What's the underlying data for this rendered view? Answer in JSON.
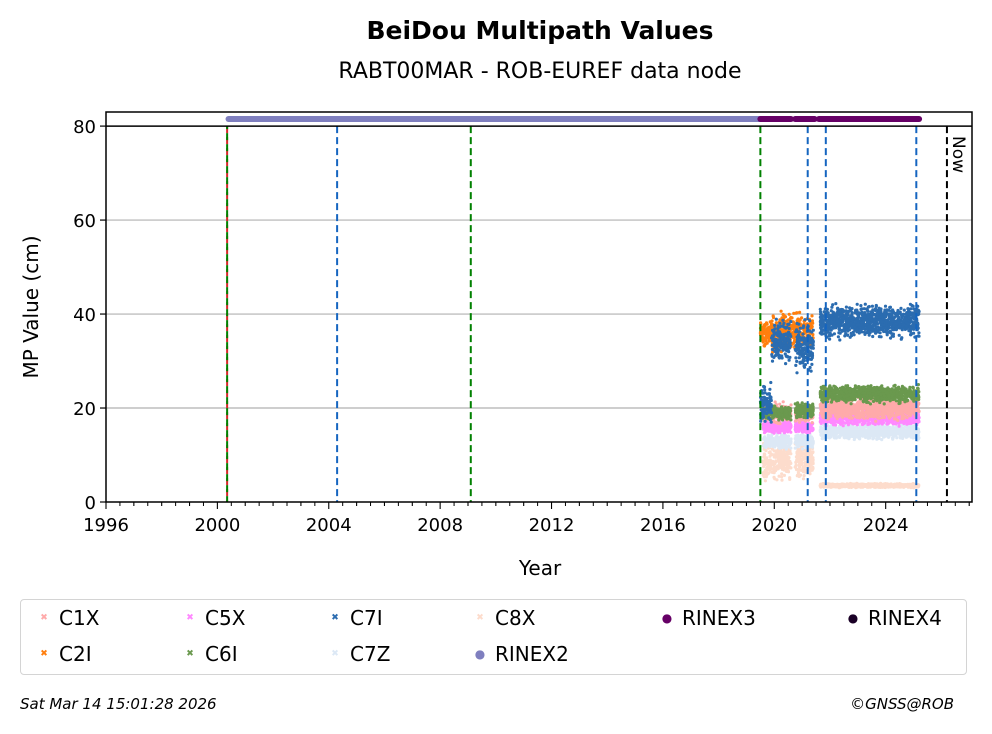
{
  "chart_data": {
    "type": "scatter",
    "title": "BeiDou Multipath Values",
    "subtitle": "RABT00MAR - ROB-EUREF data node",
    "xlabel": "Year",
    "ylabel": "MP Value (cm)",
    "xlim": [
      1996,
      2027.1
    ],
    "ylim": [
      0,
      83
    ],
    "xticks": [
      1996,
      2000,
      2004,
      2008,
      2012,
      2016,
      2020,
      2024
    ],
    "yticks": [
      0,
      20,
      40,
      60,
      80
    ],
    "grid": "y",
    "now_label": "Now",
    "vlines": [
      {
        "x": 2000.35,
        "color": "#d62728",
        "style": "dashed"
      },
      {
        "x": 2000.35,
        "color": "#008000",
        "style": "dashed"
      },
      {
        "x": 2004.3,
        "color": "#1565c0",
        "style": "dashed"
      },
      {
        "x": 2009.1,
        "color": "#008000",
        "style": "dashed"
      },
      {
        "x": 2019.5,
        "color": "#008000",
        "style": "dashed"
      },
      {
        "x": 2021.2,
        "color": "#1565c0",
        "style": "dashed"
      },
      {
        "x": 2021.85,
        "color": "#1565c0",
        "style": "dashed"
      },
      {
        "x": 2025.1,
        "color": "#1565c0",
        "style": "dashed"
      },
      {
        "x": 2026.2,
        "color": "#000000",
        "style": "dashed"
      }
    ],
    "rinex_bars": [
      {
        "name": "RINEX2",
        "start": 2000.4,
        "end": 2019.5,
        "y": 81.5,
        "color": "#7f7fbf"
      },
      {
        "name": "RINEX3",
        "start": 2019.5,
        "end": 2020.6,
        "y": 81.5,
        "color": "#660066"
      },
      {
        "name": "RINEX3",
        "start": 2020.75,
        "end": 2021.45,
        "y": 81.5,
        "color": "#660066"
      },
      {
        "name": "RINEX3",
        "start": 2021.6,
        "end": 2025.2,
        "y": 81.5,
        "color": "#660066"
      }
    ],
    "series": [
      {
        "name": "C1X",
        "color": "#ffaaaa",
        "segments": [
          {
            "x0": 2019.6,
            "x1": 2020.6,
            "mean": 19,
            "spread": 1.5
          },
          {
            "x0": 2020.75,
            "x1": 2021.4,
            "mean": 19,
            "spread": 1.5
          },
          {
            "x0": 2021.65,
            "x1": 2025.2,
            "mean": 20,
            "spread": 1.8
          }
        ]
      },
      {
        "name": "C2I",
        "color": "#ff7f0e",
        "segments": [
          {
            "x0": 2019.5,
            "x1": 2019.9,
            "mean": 36,
            "spread": 2
          },
          {
            "x0": 2019.9,
            "x1": 2021.4,
            "mean": 36,
            "spread": 3
          }
        ]
      },
      {
        "name": "C5X",
        "color": "#ff88ff",
        "segments": [
          {
            "x0": 2019.6,
            "x1": 2020.6,
            "mean": 16,
            "spread": 1
          },
          {
            "x0": 2020.75,
            "x1": 2021.4,
            "mean": 16,
            "spread": 1
          },
          {
            "x0": 2021.65,
            "x1": 2025.2,
            "mean": 18,
            "spread": 1.2
          }
        ]
      },
      {
        "name": "C6I",
        "color": "#6a994e",
        "segments": [
          {
            "x0": 2019.55,
            "x1": 2020.6,
            "mean": 19,
            "spread": 1.2
          },
          {
            "x0": 2020.75,
            "x1": 2021.4,
            "mean": 19.5,
            "spread": 1.2
          },
          {
            "x0": 2021.65,
            "x1": 2025.2,
            "mean": 23,
            "spread": 1.3
          }
        ]
      },
      {
        "name": "C7I",
        "color": "#2b6cb0",
        "segments": [
          {
            "x0": 2019.5,
            "x1": 2019.9,
            "mean": 21,
            "spread": 3
          },
          {
            "x0": 2019.9,
            "x1": 2020.6,
            "mean": 34,
            "spread": 3.5
          },
          {
            "x0": 2020.75,
            "x1": 2021.4,
            "mean": 33,
            "spread": 4
          },
          {
            "x0": 2021.65,
            "x1": 2025.2,
            "mean": 38.5,
            "spread": 2.5
          }
        ]
      },
      {
        "name": "C7Z",
        "color": "#dce8f5",
        "segments": [
          {
            "x0": 2019.6,
            "x1": 2020.6,
            "mean": 13,
            "spread": 1.2
          },
          {
            "x0": 2020.75,
            "x1": 2021.4,
            "mean": 13,
            "spread": 1.2
          },
          {
            "x0": 2021.65,
            "x1": 2025.2,
            "mean": 15,
            "spread": 1.2
          }
        ]
      },
      {
        "name": "C8X",
        "color": "#fddccc",
        "segments": [
          {
            "x0": 2019.6,
            "x1": 2020.6,
            "mean": 9,
            "spread": 3
          },
          {
            "x0": 2020.75,
            "x1": 2021.4,
            "mean": 9,
            "spread": 3
          },
          {
            "x0": 2021.65,
            "x1": 2025.2,
            "mean": 3.5,
            "spread": 0.3
          }
        ]
      }
    ],
    "legend": {
      "placement": "bottom",
      "entries": [
        {
          "label": "C1X",
          "color": "#ffaaaa",
          "marker": "x"
        },
        {
          "label": "C2I",
          "color": "#ff7f0e",
          "marker": "x"
        },
        {
          "label": "C5X",
          "color": "#ff88ff",
          "marker": "x"
        },
        {
          "label": "C6I",
          "color": "#6a994e",
          "marker": "x"
        },
        {
          "label": "C7I",
          "color": "#2b6cb0",
          "marker": "x"
        },
        {
          "label": "C7Z",
          "color": "#dce8f5",
          "marker": "x"
        },
        {
          "label": "C8X",
          "color": "#fddccc",
          "marker": "x"
        },
        {
          "label": "RINEX2",
          "color": "#7f7fbf",
          "marker": "dot"
        },
        {
          "label": "RINEX3",
          "color": "#660066",
          "marker": "dot"
        },
        {
          "label": "RINEX4",
          "color": "#1a0026",
          "marker": "dot"
        }
      ]
    }
  },
  "footer": {
    "timestamp": "Sat Mar 14 15:01:28 2026",
    "copyright": "©GNSS@ROB"
  }
}
